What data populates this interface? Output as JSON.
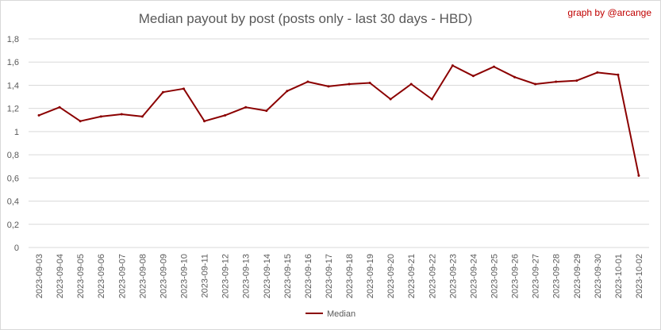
{
  "chart_data": {
    "type": "line",
    "title": "Median payout by post (posts only - last 30 days - HBD)",
    "credit": "graph by @arcange",
    "xlabel": "",
    "ylabel": "",
    "ylim": [
      0,
      1.8
    ],
    "ytick_step": 0.2,
    "yticks": [
      "0",
      "0,2",
      "0,4",
      "0,6",
      "0,8",
      "1",
      "1,2",
      "1,4",
      "1,6",
      "1,8"
    ],
    "grid": true,
    "legend_position": "bottom",
    "categories": [
      "2023-09-03",
      "2023-09-04",
      "2023-09-05",
      "2023-09-06",
      "2023-09-07",
      "2023-09-08",
      "2023-09-09",
      "2023-09-10",
      "2023-09-11",
      "2023-09-12",
      "2023-09-13",
      "2023-09-14",
      "2023-09-15",
      "2023-09-16",
      "2023-09-17",
      "2023-09-18",
      "2023-09-19",
      "2023-09-20",
      "2023-09-21",
      "2023-09-22",
      "2023-09-23",
      "2023-09-24",
      "2023-09-25",
      "2023-09-26",
      "2023-09-27",
      "2023-09-28",
      "2023-09-29",
      "2023-09-30",
      "2023-10-01",
      "2023-10-02"
    ],
    "series": [
      {
        "name": "Median",
        "color": "#8b0000",
        "values": [
          1.14,
          1.21,
          1.09,
          1.13,
          1.15,
          1.13,
          1.34,
          1.37,
          1.09,
          1.14,
          1.21,
          1.18,
          1.35,
          1.43,
          1.39,
          1.41,
          1.42,
          1.28,
          1.41,
          1.28,
          1.57,
          1.48,
          1.56,
          1.47,
          1.41,
          1.43,
          1.44,
          1.51,
          1.49,
          0.62
        ]
      }
    ]
  },
  "colors": {
    "line": "#8b0000",
    "credit": "#c00000",
    "text": "#595959",
    "grid": "#d9d9d9",
    "border": "#d9d9d9"
  }
}
